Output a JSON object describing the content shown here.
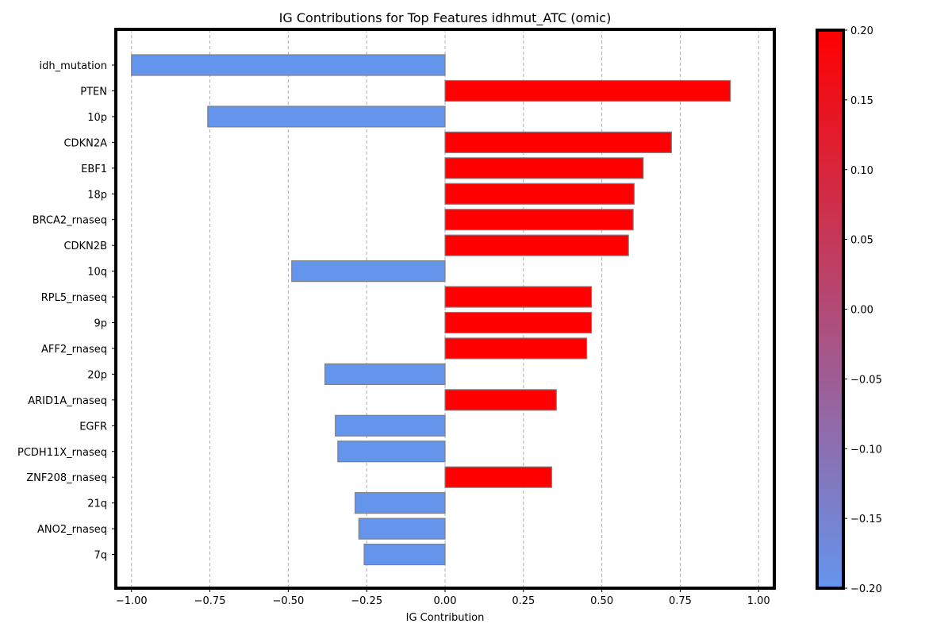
{
  "chart_data": {
    "type": "bar",
    "orientation": "horizontal",
    "title": "IG Contributions for Top Features idhmut_ATC (omic)",
    "xlabel": "IG Contribution",
    "ylabel": "",
    "xlim": [
      -1.05,
      1.05
    ],
    "xticks": [
      -1.0,
      -0.75,
      -0.5,
      -0.25,
      0.0,
      0.25,
      0.5,
      0.75,
      1.0
    ],
    "xtick_labels": [
      "−1.00",
      "−0.75",
      "−0.50",
      "−0.25",
      "0.00",
      "0.25",
      "0.50",
      "0.75",
      "1.00"
    ],
    "grid": "vertical dashed",
    "categories": [
      "idh_mutation",
      "PTEN",
      "10p",
      "CDKN2A",
      "EBF1",
      "18p",
      "BRCA2_rnaseq",
      "CDKN2B",
      "10q",
      "RPL5_rnaseq",
      "9p",
      "AFF2_rnaseq",
      "20p",
      "ARID1A_rnaseq",
      "EGFR",
      "PCDH11X_rnaseq",
      "ZNF208_rnaseq",
      "21q",
      "ANO2_rnaseq",
      "7q"
    ],
    "values": [
      -1.0,
      0.91,
      -0.757,
      0.722,
      0.632,
      0.603,
      0.6,
      0.585,
      -0.489,
      0.467,
      0.467,
      0.452,
      -0.383,
      0.355,
      -0.35,
      -0.342,
      0.34,
      -0.287,
      -0.275,
      -0.258
    ],
    "positive_color": "#ff0000",
    "negative_color": "#6495ed",
    "colorbar": {
      "range": [
        -0.2,
        0.2
      ],
      "ticks": [
        0.2,
        0.15,
        0.1,
        0.05,
        0.0,
        -0.05,
        -0.1,
        -0.15,
        -0.2
      ],
      "tick_labels": [
        "0.20",
        "0.15",
        "0.10",
        "0.05",
        "0.00",
        "−0.05",
        "−0.10",
        "−0.15",
        "−0.20"
      ],
      "color_low": "#6495ed",
      "color_high": "#ff0000"
    }
  }
}
